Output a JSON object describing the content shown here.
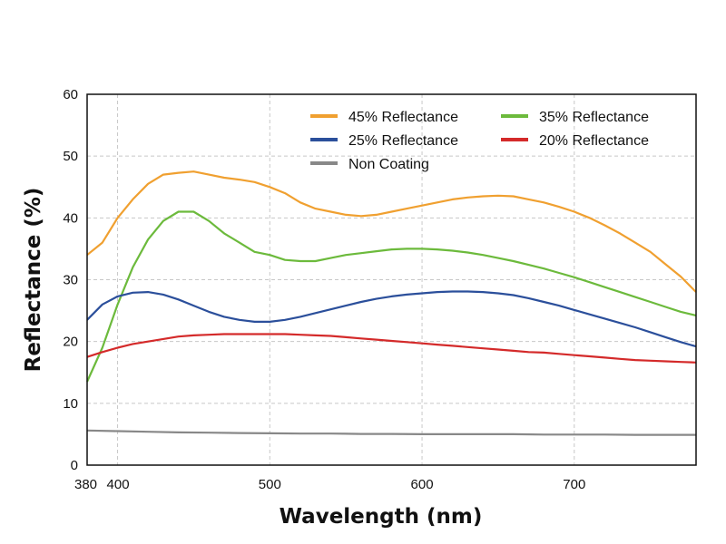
{
  "chart_data": {
    "type": "line",
    "title": "",
    "xlabel": "Wavelength (nm)",
    "ylabel": "Reflectance (%)",
    "xlim": [
      380,
      780
    ],
    "ylim": [
      0,
      60
    ],
    "xticks": [
      380,
      400,
      500,
      600,
      700
    ],
    "xtick_labels": [
      "380",
      "400",
      "500",
      "600",
      "700"
    ],
    "yticks": [
      0,
      10,
      20,
      30,
      40,
      50,
      60
    ],
    "ytick_labels": [
      "0",
      "10",
      "20",
      "30",
      "40",
      "50",
      "60"
    ],
    "grid": true,
    "legend_position": "top-right",
    "series": [
      {
        "name": "45% Reflectance",
        "color": "#f0a030",
        "x": [
          380,
          390,
          400,
          410,
          420,
          430,
          440,
          450,
          460,
          470,
          480,
          490,
          500,
          510,
          520,
          530,
          540,
          550,
          560,
          570,
          580,
          590,
          600,
          610,
          620,
          630,
          640,
          650,
          660,
          670,
          680,
          690,
          700,
          710,
          720,
          730,
          740,
          750,
          760,
          770,
          780
        ],
        "y": [
          34,
          36,
          40,
          43,
          45.5,
          47,
          47.3,
          47.5,
          47,
          46.5,
          46.2,
          45.8,
          45,
          44,
          42.5,
          41.5,
          41,
          40.5,
          40.3,
          40.5,
          41,
          41.5,
          42,
          42.5,
          43,
          43.3,
          43.5,
          43.6,
          43.5,
          43,
          42.5,
          41.8,
          41,
          40,
          38.8,
          37.5,
          36,
          34.5,
          32.5,
          30.5,
          28
        ]
      },
      {
        "name": "35% Reflectance",
        "color": "#6cba3c",
        "x": [
          380,
          390,
          400,
          410,
          420,
          430,
          440,
          450,
          460,
          470,
          480,
          490,
          500,
          510,
          520,
          530,
          540,
          550,
          560,
          570,
          580,
          590,
          600,
          610,
          620,
          630,
          640,
          650,
          660,
          670,
          680,
          690,
          700,
          710,
          720,
          730,
          740,
          750,
          760,
          770,
          780
        ],
        "y": [
          13.5,
          19,
          26,
          32,
          36.5,
          39.5,
          41,
          41,
          39.5,
          37.5,
          36,
          34.5,
          34,
          33.2,
          33,
          33,
          33.5,
          34,
          34.3,
          34.6,
          34.9,
          35,
          35,
          34.9,
          34.7,
          34.4,
          34,
          33.5,
          33,
          32.4,
          31.8,
          31.1,
          30.4,
          29.6,
          28.8,
          28,
          27.2,
          26.4,
          25.6,
          24.8,
          24.2
        ]
      },
      {
        "name": "25% Reflectance",
        "color": "#2b4f9b",
        "x": [
          380,
          390,
          400,
          410,
          420,
          430,
          440,
          450,
          460,
          470,
          480,
          490,
          500,
          510,
          520,
          530,
          540,
          550,
          560,
          570,
          580,
          590,
          600,
          610,
          620,
          630,
          640,
          650,
          660,
          670,
          680,
          690,
          700,
          710,
          720,
          730,
          740,
          750,
          760,
          770,
          780
        ],
        "y": [
          23.5,
          26,
          27.3,
          27.9,
          28,
          27.6,
          26.8,
          25.8,
          24.8,
          24,
          23.5,
          23.2,
          23.2,
          23.5,
          24,
          24.6,
          25.2,
          25.8,
          26.4,
          26.9,
          27.3,
          27.6,
          27.8,
          28,
          28.1,
          28.1,
          28,
          27.8,
          27.5,
          27,
          26.4,
          25.8,
          25.1,
          24.4,
          23.7,
          23,
          22.3,
          21.5,
          20.7,
          19.9,
          19.2
        ]
      },
      {
        "name": "20% Reflectance",
        "color": "#d42a2a",
        "x": [
          380,
          390,
          400,
          410,
          420,
          430,
          440,
          450,
          460,
          470,
          480,
          490,
          500,
          510,
          520,
          530,
          540,
          550,
          560,
          570,
          580,
          590,
          600,
          610,
          620,
          630,
          640,
          650,
          660,
          670,
          680,
          690,
          700,
          710,
          720,
          730,
          740,
          750,
          760,
          770,
          780
        ],
        "y": [
          17.5,
          18.3,
          19,
          19.6,
          20,
          20.4,
          20.8,
          21,
          21.1,
          21.2,
          21.2,
          21.2,
          21.2,
          21.2,
          21.1,
          21,
          20.9,
          20.7,
          20.5,
          20.3,
          20.1,
          19.9,
          19.7,
          19.5,
          19.3,
          19.1,
          18.9,
          18.7,
          18.5,
          18.3,
          18.2,
          18,
          17.8,
          17.6,
          17.4,
          17.2,
          17,
          16.9,
          16.8,
          16.7,
          16.6
        ]
      },
      {
        "name": "Non Coating",
        "color": "#888888",
        "x": [
          380,
          400,
          420,
          440,
          460,
          480,
          500,
          520,
          540,
          560,
          580,
          600,
          620,
          640,
          660,
          680,
          700,
          720,
          740,
          760,
          780
        ],
        "y": [
          5.6,
          5.5,
          5.4,
          5.3,
          5.25,
          5.2,
          5.15,
          5.1,
          5.1,
          5.05,
          5.05,
          5,
          5,
          5,
          5,
          4.95,
          4.95,
          4.95,
          4.9,
          4.9,
          4.9
        ]
      }
    ],
    "legend": [
      {
        "label": "45% Reflectance",
        "color": "#f0a030",
        "col": 0,
        "row": 0
      },
      {
        "label": "35% Reflectance",
        "color": "#6cba3c",
        "col": 1,
        "row": 0
      },
      {
        "label": "25% Reflectance",
        "color": "#2b4f9b",
        "col": 0,
        "row": 1
      },
      {
        "label": "20% Reflectance",
        "color": "#d42a2a",
        "col": 1,
        "row": 1
      },
      {
        "label": "Non Coating",
        "color": "#888888",
        "col": 0,
        "row": 2
      }
    ]
  }
}
